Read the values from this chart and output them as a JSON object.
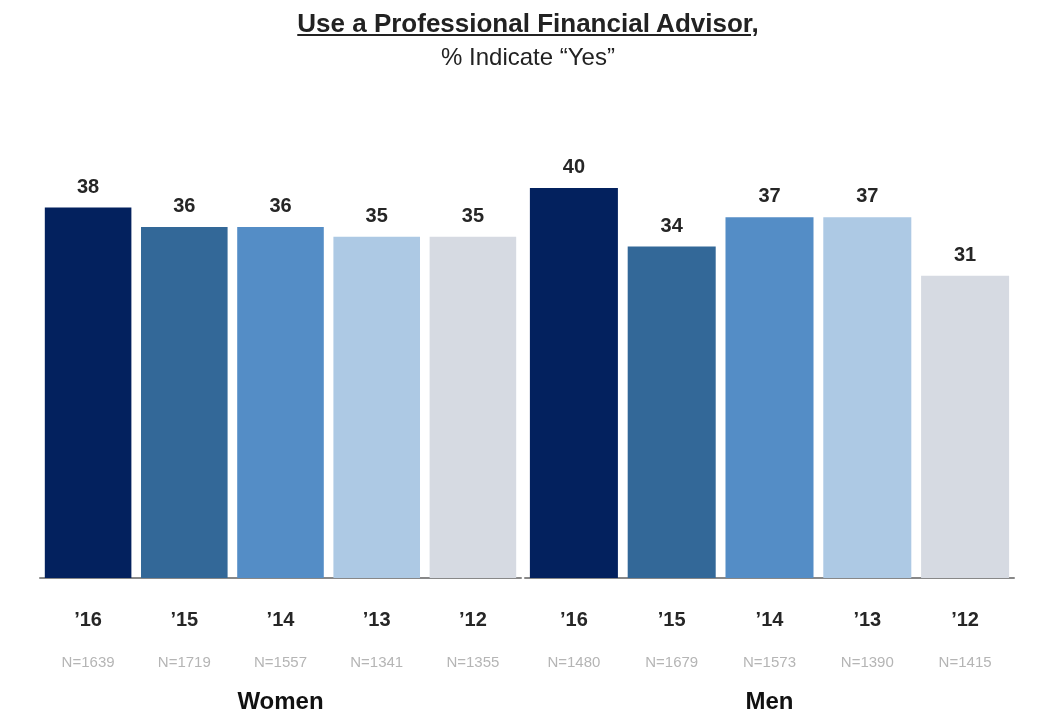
{
  "chart_data": [
    {
      "type": "bar",
      "title": "Use a Professional Financial Advisor,",
      "subtitle": "% Indicate “Yes”",
      "xlabel": "Women",
      "categories": [
        "’16\nN=1639",
        "’15\nN=1719",
        "’14\nN=1557",
        "’13\nN=1341",
        "’12\nN=1355"
      ],
      "values": [
        38,
        36,
        36,
        35,
        35
      ],
      "colors": [
        "#03215e",
        "#336898",
        "#548dc6",
        "#adc9e4",
        "#d6dae2"
      ],
      "data_labels": true,
      "grid": false
    },
    {
      "type": "bar",
      "xlabel": "Men",
      "categories": [
        "’16\nN=1480",
        "’15\nN=1679",
        "’14\nN=1573",
        "’13\nN=1390",
        "’12\nN=1415"
      ],
      "values": [
        40,
        34,
        37,
        37,
        31
      ],
      "colors": [
        "#03215e",
        "#336898",
        "#548dc6",
        "#adc9e4",
        "#d6dae2"
      ],
      "data_labels": true,
      "grid": false
    }
  ]
}
